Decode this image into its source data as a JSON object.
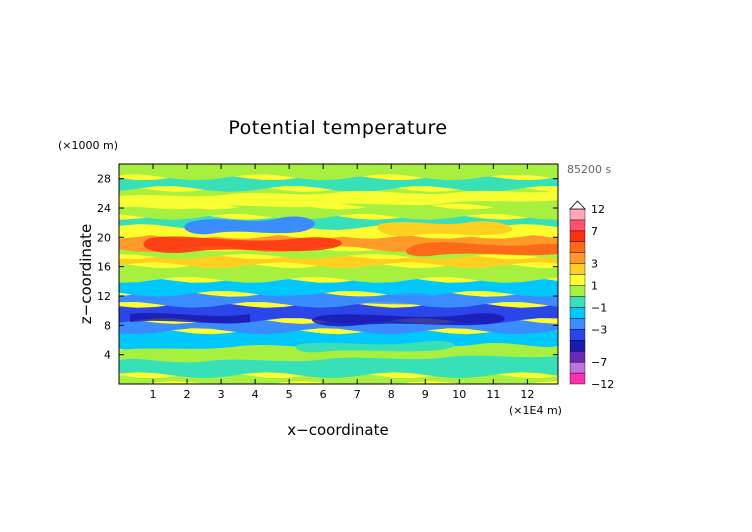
{
  "chart_data": {
    "type": "heatmap",
    "title": "Potential temperature",
    "xlabel": "x−coordinate",
    "ylabel": "z−coordinate",
    "x_unit": "(×1E4 m)",
    "y_unit": "(×1000 m)",
    "time_label": "85200 s",
    "xlim": [
      0,
      12.9
    ],
    "ylim": [
      0,
      30
    ],
    "x_ticks": [
      1,
      2,
      3,
      4,
      5,
      6,
      7,
      8,
      9,
      10,
      11,
      12
    ],
    "y_ticks": [
      4,
      8,
      12,
      16,
      20,
      24,
      28
    ],
    "colorbar": {
      "levels": [
        -12,
        -9,
        -7,
        -5,
        -4,
        -3,
        -2,
        -1,
        0,
        1,
        2,
        3,
        4,
        5,
        7,
        9,
        12
      ],
      "tick_labels": [
        "12",
        "7",
        "3",
        "1",
        "−1",
        "−3",
        "−7",
        "−12"
      ],
      "tick_values": [
        12,
        7,
        3,
        1,
        -1,
        -3,
        -7,
        -12
      ],
      "colors": [
        "#ff30b0",
        "#c070e0",
        "#6a2ab8",
        "#1a1ab0",
        "#2a46e8",
        "#3a8cff",
        "#00c8ff",
        "#38e0b8",
        "#a8f040",
        "#ffff30",
        "#ffd020",
        "#ff9a28",
        "#ff6a18",
        "#ff3010",
        "#ff5070",
        "#ffa8b8"
      ],
      "extend_top": true
    },
    "layers": [
      {
        "z_range": [
          0,
          1.2
        ],
        "value_range": [
          0,
          1
        ]
      },
      {
        "z_range": [
          1.2,
          4.5
        ],
        "value_range": [
          -1,
          0
        ]
      },
      {
        "z_range": [
          4.5,
          7.2
        ],
        "value_range": [
          -2,
          -1
        ]
      },
      {
        "z_range": [
          7.2,
          8.6
        ],
        "value_range": [
          -3,
          -2
        ]
      },
      {
        "z_range": [
          8.6,
          10.8
        ],
        "value_range": [
          -4,
          -3
        ]
      },
      {
        "z_range": [
          10.8,
          12.3
        ],
        "value_range": [
          -3,
          -2
        ]
      },
      {
        "z_range": [
          12.3,
          14.2
        ],
        "value_range": [
          -2,
          -1
        ]
      },
      {
        "z_range": [
          14.2,
          16.2
        ],
        "value_range": [
          0,
          1
        ]
      },
      {
        "z_range": [
          16.2,
          17.4
        ],
        "value_range": [
          2,
          3
        ]
      },
      {
        "z_range": [
          17.4,
          18.4
        ],
        "value_range": [
          0,
          1
        ]
      },
      {
        "z_range": [
          18.4,
          20.2
        ],
        "value_range": [
          3,
          4
        ]
      },
      {
        "z_range": [
          20.2,
          21.4
        ],
        "value_range": [
          1,
          2
        ]
      },
      {
        "z_range": [
          21.4,
          22.8
        ],
        "value_range": [
          -1,
          0
        ]
      },
      {
        "z_range": [
          22.8,
          24.2
        ],
        "value_range": [
          0,
          1
        ]
      },
      {
        "z_range": [
          24.2,
          26.6
        ],
        "value_range": [
          0,
          1
        ]
      },
      {
        "z_range": [
          26.6,
          28.2
        ],
        "value_range": [
          -1,
          0
        ]
      },
      {
        "z_range": [
          28.2,
          30
        ],
        "value_range": [
          0,
          1
        ]
      }
    ]
  }
}
